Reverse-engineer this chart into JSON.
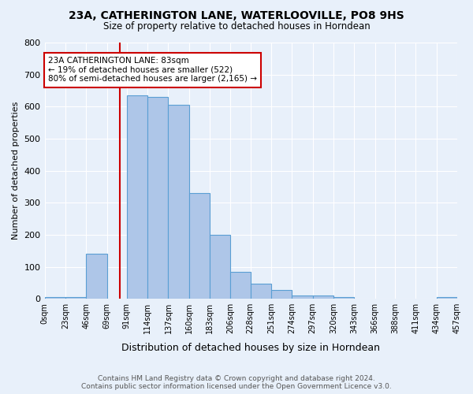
{
  "title1": "23A, CATHERINGTON LANE, WATERLOOVILLE, PO8 9HS",
  "title2": "Size of property relative to detached houses in Horndean",
  "xlabel": "Distribution of detached houses by size in Horndean",
  "ylabel": "Number of detached properties",
  "footer1": "Contains HM Land Registry data © Crown copyright and database right 2024.",
  "footer2": "Contains public sector information licensed under the Open Government Licence v3.0.",
  "bin_edges": [
    0,
    23,
    46,
    69,
    91,
    114,
    137,
    160,
    183,
    206,
    228,
    251,
    274,
    297,
    320,
    343,
    366,
    388,
    411,
    434,
    457
  ],
  "bar_heights": [
    5,
    5,
    140,
    0,
    635,
    630,
    605,
    330,
    200,
    85,
    48,
    28,
    10,
    10,
    5,
    0,
    0,
    0,
    0,
    5
  ],
  "bar_color": "#aec6e8",
  "bar_edge_color": "#5a9fd4",
  "property_size": 83,
  "vline_color": "#cc0000",
  "annotation_text": "23A CATHERINGTON LANE: 83sqm\n← 19% of detached houses are smaller (522)\n80% of semi-detached houses are larger (2,165) →",
  "annotation_box_color": "#ffffff",
  "annotation_box_edge_color": "#cc0000",
  "ylim": [
    0,
    800
  ],
  "yticks": [
    0,
    100,
    200,
    300,
    400,
    500,
    600,
    700,
    800
  ],
  "bg_color": "#e8f0fa",
  "grid_color": "#ffffff"
}
